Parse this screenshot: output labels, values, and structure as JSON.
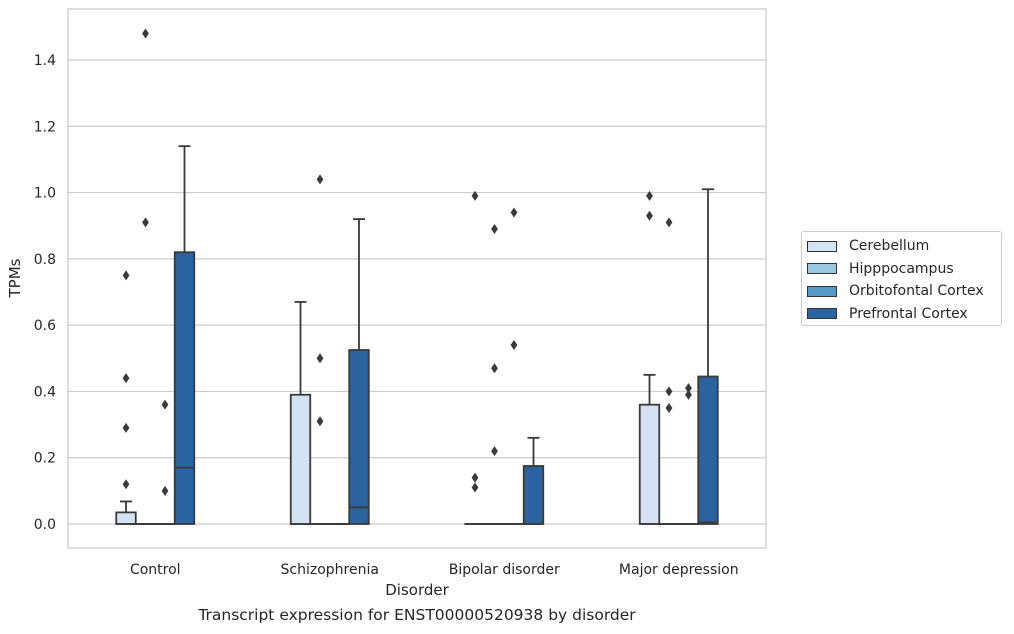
{
  "chart_data": {
    "type": "box",
    "categories": [
      "Control",
      "Schizophrenia",
      "Bipolar disorder",
      "Major depression"
    ],
    "xlabel": "Disorder",
    "ylabel": "TPMs",
    "ylim": [
      -0.07,
      1.56
    ],
    "yticks": [
      0.0,
      0.2,
      0.4,
      0.6,
      0.8,
      1.0,
      1.2,
      1.4
    ],
    "grid": "horizontal",
    "legend_position": "right",
    "series": [
      {
        "name": "Cerebellum",
        "color": "#d3e3f3",
        "boxes": [
          {
            "category": "Control",
            "whisker_low": 0.0,
            "q1": 0.0,
            "median": 0.0,
            "q3": 0.035,
            "whisker_high": 0.068,
            "outliers": [
              0.12,
              0.29,
              0.44,
              0.75
            ]
          },
          {
            "category": "Schizophrenia",
            "whisker_low": 0.0,
            "q1": 0.0,
            "median": 0.0,
            "q3": 0.39,
            "whisker_high": 0.67,
            "outliers": []
          },
          {
            "category": "Bipolar disorder",
            "whisker_low": 0.0,
            "q1": 0.0,
            "median": 0.0,
            "q3": 0.0,
            "whisker_high": 0.0,
            "outliers": [
              0.11,
              0.14,
              0.99
            ]
          },
          {
            "category": "Major depression",
            "whisker_low": 0.0,
            "q1": 0.0,
            "median": 0.0,
            "q3": 0.36,
            "whisker_high": 0.45,
            "outliers": [
              0.93,
              0.99
            ]
          }
        ]
      },
      {
        "name": "Hipppocampus",
        "color": "#9ac8e0",
        "boxes": [
          {
            "category": "Control",
            "whisker_low": 0.0,
            "q1": 0.0,
            "median": 0.0,
            "q3": 0.0,
            "whisker_high": 0.0,
            "outliers": [
              0.91,
              1.48
            ]
          },
          {
            "category": "Schizophrenia",
            "whisker_low": 0.0,
            "q1": 0.0,
            "median": 0.0,
            "q3": 0.0,
            "whisker_high": 0.0,
            "outliers": [
              0.31,
              0.5,
              1.04
            ]
          },
          {
            "category": "Bipolar disorder",
            "whisker_low": 0.0,
            "q1": 0.0,
            "median": 0.0,
            "q3": 0.0,
            "whisker_high": 0.0,
            "outliers": [
              0.22,
              0.47,
              0.89
            ]
          },
          {
            "category": "Major depression",
            "whisker_low": 0.0,
            "q1": 0.0,
            "median": 0.0,
            "q3": 0.0,
            "whisker_high": 0.0,
            "outliers": [
              0.35,
              0.4,
              0.91
            ]
          }
        ]
      },
      {
        "name": "Orbitofontal Cortex",
        "color": "#5799c7",
        "boxes": [
          {
            "category": "Control",
            "whisker_low": 0.0,
            "q1": 0.0,
            "median": 0.0,
            "q3": 0.0,
            "whisker_high": 0.0,
            "outliers": [
              0.1,
              0.36
            ]
          },
          {
            "category": "Schizophrenia",
            "whisker_low": 0.0,
            "q1": 0.0,
            "median": 0.0,
            "q3": 0.0,
            "whisker_high": 0.0,
            "outliers": []
          },
          {
            "category": "Bipolar disorder",
            "whisker_low": 0.0,
            "q1": 0.0,
            "median": 0.0,
            "q3": 0.0,
            "whisker_high": 0.0,
            "outliers": [
              0.54,
              0.94
            ]
          },
          {
            "category": "Major depression",
            "whisker_low": 0.0,
            "q1": 0.0,
            "median": 0.0,
            "q3": 0.0,
            "whisker_high": 0.0,
            "outliers": [
              0.39,
              0.41
            ]
          }
        ]
      },
      {
        "name": "Prefrontal Cortex",
        "color": "#2b63a0",
        "boxes": [
          {
            "category": "Control",
            "whisker_low": 0.0,
            "q1": 0.0,
            "median": 0.17,
            "q3": 0.82,
            "whisker_high": 1.14,
            "outliers": []
          },
          {
            "category": "Schizophrenia",
            "whisker_low": 0.0,
            "q1": 0.0,
            "median": 0.05,
            "q3": 0.525,
            "whisker_high": 0.92,
            "outliers": []
          },
          {
            "category": "Bipolar disorder",
            "whisker_low": 0.0,
            "q1": 0.0,
            "median": 0.0,
            "q3": 0.175,
            "whisker_high": 0.26,
            "outliers": []
          },
          {
            "category": "Major depression",
            "whisker_low": 0.0,
            "q1": 0.0,
            "median": 0.005,
            "q3": 0.445,
            "whisker_high": 1.01,
            "outliers": []
          }
        ]
      }
    ]
  },
  "caption": "Transcript expression for ENST00000520938 by disorder"
}
